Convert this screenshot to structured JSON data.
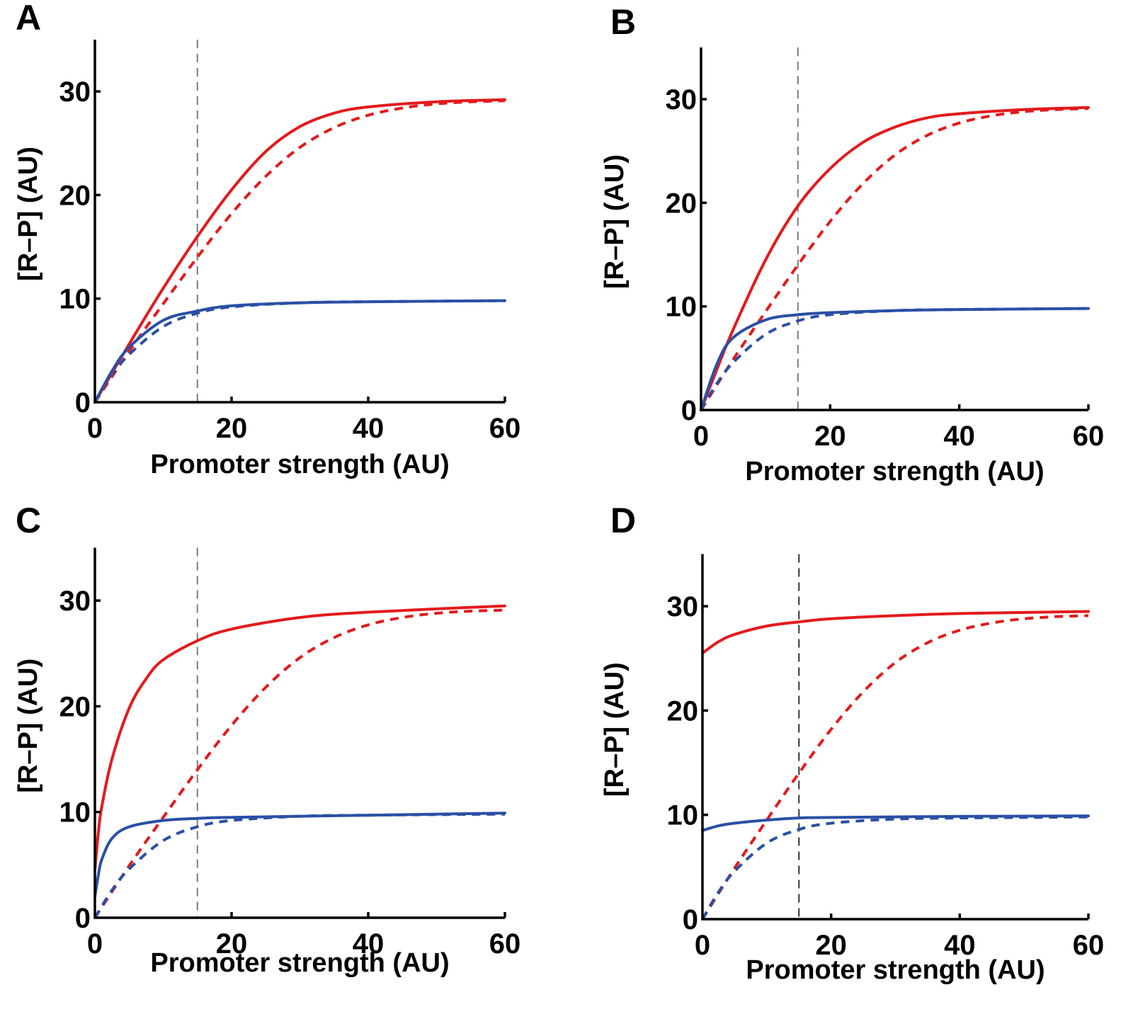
{
  "colors": {
    "red": "#e31a1c",
    "blue": "#2a4fa5",
    "ref_line_gray": "#7a7a7a",
    "ref_line_dark": "#333333"
  },
  "chart_data": [
    {
      "type": "line",
      "panel": "A",
      "title": "",
      "xlabel": "Promoter strength (AU)",
      "ylabel": "[R–P] (AU)",
      "xlim": [
        0,
        60
      ],
      "ylim": [
        0,
        35
      ],
      "xticks": [
        0,
        20,
        40,
        60
      ],
      "yticks": [
        0,
        10,
        20,
        30
      ],
      "xtick_labels": [
        "0",
        "20",
        "40",
        "60"
      ],
      "ytick_labels": [
        "0",
        "10",
        "20",
        "30"
      ],
      "grid": false,
      "legend": "none",
      "vline": {
        "x": 15,
        "style": "dashed",
        "color": "gray"
      },
      "series": [
        {
          "name": "red-solid",
          "color": "red",
          "style": "solid",
          "x": [
            0,
            5,
            10,
            15,
            20,
            25,
            30,
            35,
            40,
            50,
            60
          ],
          "y": [
            0,
            5.6,
            11.0,
            16.0,
            20.5,
            24.2,
            26.6,
            27.9,
            28.5,
            29.0,
            29.2
          ]
        },
        {
          "name": "red-dashed",
          "color": "red",
          "style": "dashed",
          "x": [
            0,
            5,
            10,
            15,
            20,
            25,
            30,
            35,
            40,
            45,
            50,
            55,
            60
          ],
          "y": [
            0,
            4.9,
            9.5,
            14.0,
            18.2,
            21.8,
            24.6,
            26.5,
            27.7,
            28.4,
            28.8,
            29.0,
            29.1
          ]
        },
        {
          "name": "blue-solid",
          "color": "blue",
          "style": "solid",
          "x": [
            0,
            2.5,
            5,
            10,
            15,
            20,
            30,
            40,
            60
          ],
          "y": [
            0,
            3.0,
            5.3,
            7.9,
            8.8,
            9.3,
            9.6,
            9.7,
            9.8
          ]
        },
        {
          "name": "blue-dashed",
          "color": "blue",
          "style": "dashed",
          "x": [
            0,
            2.5,
            5,
            10,
            15,
            20,
            30,
            40,
            60
          ],
          "y": [
            0,
            2.6,
            4.6,
            7.3,
            8.6,
            9.2,
            9.6,
            9.7,
            9.8
          ]
        }
      ]
    },
    {
      "type": "line",
      "panel": "B",
      "title": "",
      "xlabel": "Promoter strength (AU)",
      "ylabel": "[R–P] (AU)",
      "xlim": [
        0,
        60
      ],
      "ylim": [
        0,
        35
      ],
      "xticks": [
        0,
        20,
        40,
        60
      ],
      "yticks": [
        0,
        10,
        20,
        30
      ],
      "xtick_labels": [
        "0",
        "20",
        "40",
        "60"
      ],
      "ytick_labels": [
        "0",
        "10",
        "20",
        "30"
      ],
      "grid": false,
      "legend": "none",
      "vline": {
        "x": 15,
        "style": "dashed",
        "color": "gray"
      },
      "series": [
        {
          "name": "red-solid",
          "color": "red",
          "style": "solid",
          "x": [
            0,
            2.5,
            5,
            10,
            15,
            20,
            25,
            30,
            35,
            40,
            50,
            60
          ],
          "y": [
            0,
            4.0,
            7.8,
            14.5,
            19.7,
            23.3,
            25.8,
            27.3,
            28.2,
            28.6,
            29.0,
            29.2
          ]
        },
        {
          "name": "red-dashed",
          "color": "red",
          "style": "dashed",
          "x": [
            0,
            5,
            10,
            15,
            20,
            25,
            30,
            35,
            40,
            45,
            50,
            55,
            60
          ],
          "y": [
            0,
            4.9,
            9.5,
            14.0,
            18.2,
            21.8,
            24.6,
            26.5,
            27.7,
            28.4,
            28.8,
            29.0,
            29.1
          ]
        },
        {
          "name": "blue-solid",
          "color": "blue",
          "style": "solid",
          "x": [
            0,
            2.5,
            5,
            10,
            15,
            20,
            30,
            40,
            60
          ],
          "y": [
            0,
            4.5,
            7.0,
            8.7,
            9.2,
            9.4,
            9.6,
            9.7,
            9.8
          ]
        },
        {
          "name": "blue-dashed",
          "color": "blue",
          "style": "dashed",
          "x": [
            0,
            2.5,
            5,
            10,
            15,
            20,
            30,
            40,
            60
          ],
          "y": [
            0,
            2.6,
            4.6,
            7.3,
            8.6,
            9.2,
            9.6,
            9.7,
            9.8
          ]
        }
      ]
    },
    {
      "type": "line",
      "panel": "C",
      "title": "",
      "xlabel": "Promoter strength (AU)",
      "ylabel": "[R–P] (AU)",
      "xlim": [
        0,
        60
      ],
      "ylim": [
        0,
        35
      ],
      "xticks": [
        0,
        20,
        40,
        60
      ],
      "yticks": [
        0,
        10,
        20,
        30
      ],
      "xtick_labels": [
        "0",
        "20",
        "40",
        "60"
      ],
      "ytick_labels": [
        "0",
        "10",
        "20",
        "30"
      ],
      "grid": false,
      "legend": "none",
      "vline": {
        "x": 15,
        "style": "dashed",
        "color": "gray"
      },
      "series": [
        {
          "name": "red-solid",
          "color": "red",
          "style": "solid",
          "x": [
            0,
            0.5,
            1,
            2.5,
            5,
            7.5,
            10,
            15,
            20,
            30,
            40,
            60
          ],
          "y": [
            4.5,
            8.0,
            10.5,
            15.0,
            19.8,
            22.6,
            24.4,
            26.2,
            27.3,
            28.4,
            28.9,
            29.5
          ]
        },
        {
          "name": "red-dashed",
          "color": "red",
          "style": "dashed",
          "x": [
            0,
            5,
            10,
            15,
            20,
            25,
            30,
            35,
            40,
            45,
            50,
            55,
            60
          ],
          "y": [
            0,
            4.9,
            9.5,
            14.0,
            18.2,
            21.8,
            24.6,
            26.5,
            27.7,
            28.4,
            28.8,
            29.0,
            29.1
          ]
        },
        {
          "name": "blue-solid",
          "color": "blue",
          "style": "solid",
          "x": [
            0,
            0.5,
            1,
            2.5,
            5,
            10,
            15,
            20,
            40,
            60
          ],
          "y": [
            2.0,
            4.0,
            5.5,
            7.5,
            8.6,
            9.2,
            9.4,
            9.5,
            9.7,
            9.9
          ]
        },
        {
          "name": "blue-dashed",
          "color": "blue",
          "style": "dashed",
          "x": [
            0,
            2.5,
            5,
            10,
            15,
            20,
            30,
            40,
            60
          ],
          "y": [
            0,
            2.6,
            4.6,
            7.3,
            8.6,
            9.2,
            9.6,
            9.7,
            9.8
          ]
        }
      ]
    },
    {
      "type": "line",
      "panel": "D",
      "title": "",
      "xlabel": "Promoter strength (AU)",
      "ylabel": "[R–P] (AU)",
      "xlim": [
        0,
        60
      ],
      "ylim": [
        0,
        35
      ],
      "xticks": [
        0,
        20,
        40,
        60
      ],
      "yticks": [
        0,
        10,
        20,
        30
      ],
      "xtick_labels": [
        "0",
        "20",
        "40",
        "60"
      ],
      "ytick_labels": [
        "0",
        "10",
        "20",
        "30"
      ],
      "grid": false,
      "legend": "none",
      "vline": {
        "x": 15,
        "style": "dashed",
        "color": "dark"
      },
      "series": [
        {
          "name": "red-solid",
          "color": "red",
          "style": "solid",
          "x": [
            0,
            2.5,
            5,
            10,
            15,
            20,
            30,
            40,
            60
          ],
          "y": [
            25.5,
            26.6,
            27.3,
            28.1,
            28.5,
            28.8,
            29.1,
            29.3,
            29.5
          ]
        },
        {
          "name": "red-dashed",
          "color": "red",
          "style": "dashed",
          "x": [
            0,
            5,
            10,
            15,
            20,
            25,
            30,
            35,
            40,
            45,
            50,
            55,
            60
          ],
          "y": [
            0,
            4.9,
            9.5,
            14.0,
            18.2,
            21.8,
            24.6,
            26.5,
            27.7,
            28.4,
            28.8,
            29.0,
            29.1
          ]
        },
        {
          "name": "blue-solid",
          "color": "blue",
          "style": "solid",
          "x": [
            0,
            2.5,
            5,
            10,
            15,
            20,
            40,
            60
          ],
          "y": [
            8.5,
            8.95,
            9.2,
            9.5,
            9.7,
            9.75,
            9.85,
            9.9
          ]
        },
        {
          "name": "blue-dashed",
          "color": "blue",
          "style": "dashed",
          "x": [
            0,
            2.5,
            5,
            10,
            15,
            20,
            30,
            40,
            60
          ],
          "y": [
            0,
            2.6,
            4.6,
            7.3,
            8.6,
            9.2,
            9.6,
            9.7,
            9.8
          ]
        }
      ]
    }
  ]
}
